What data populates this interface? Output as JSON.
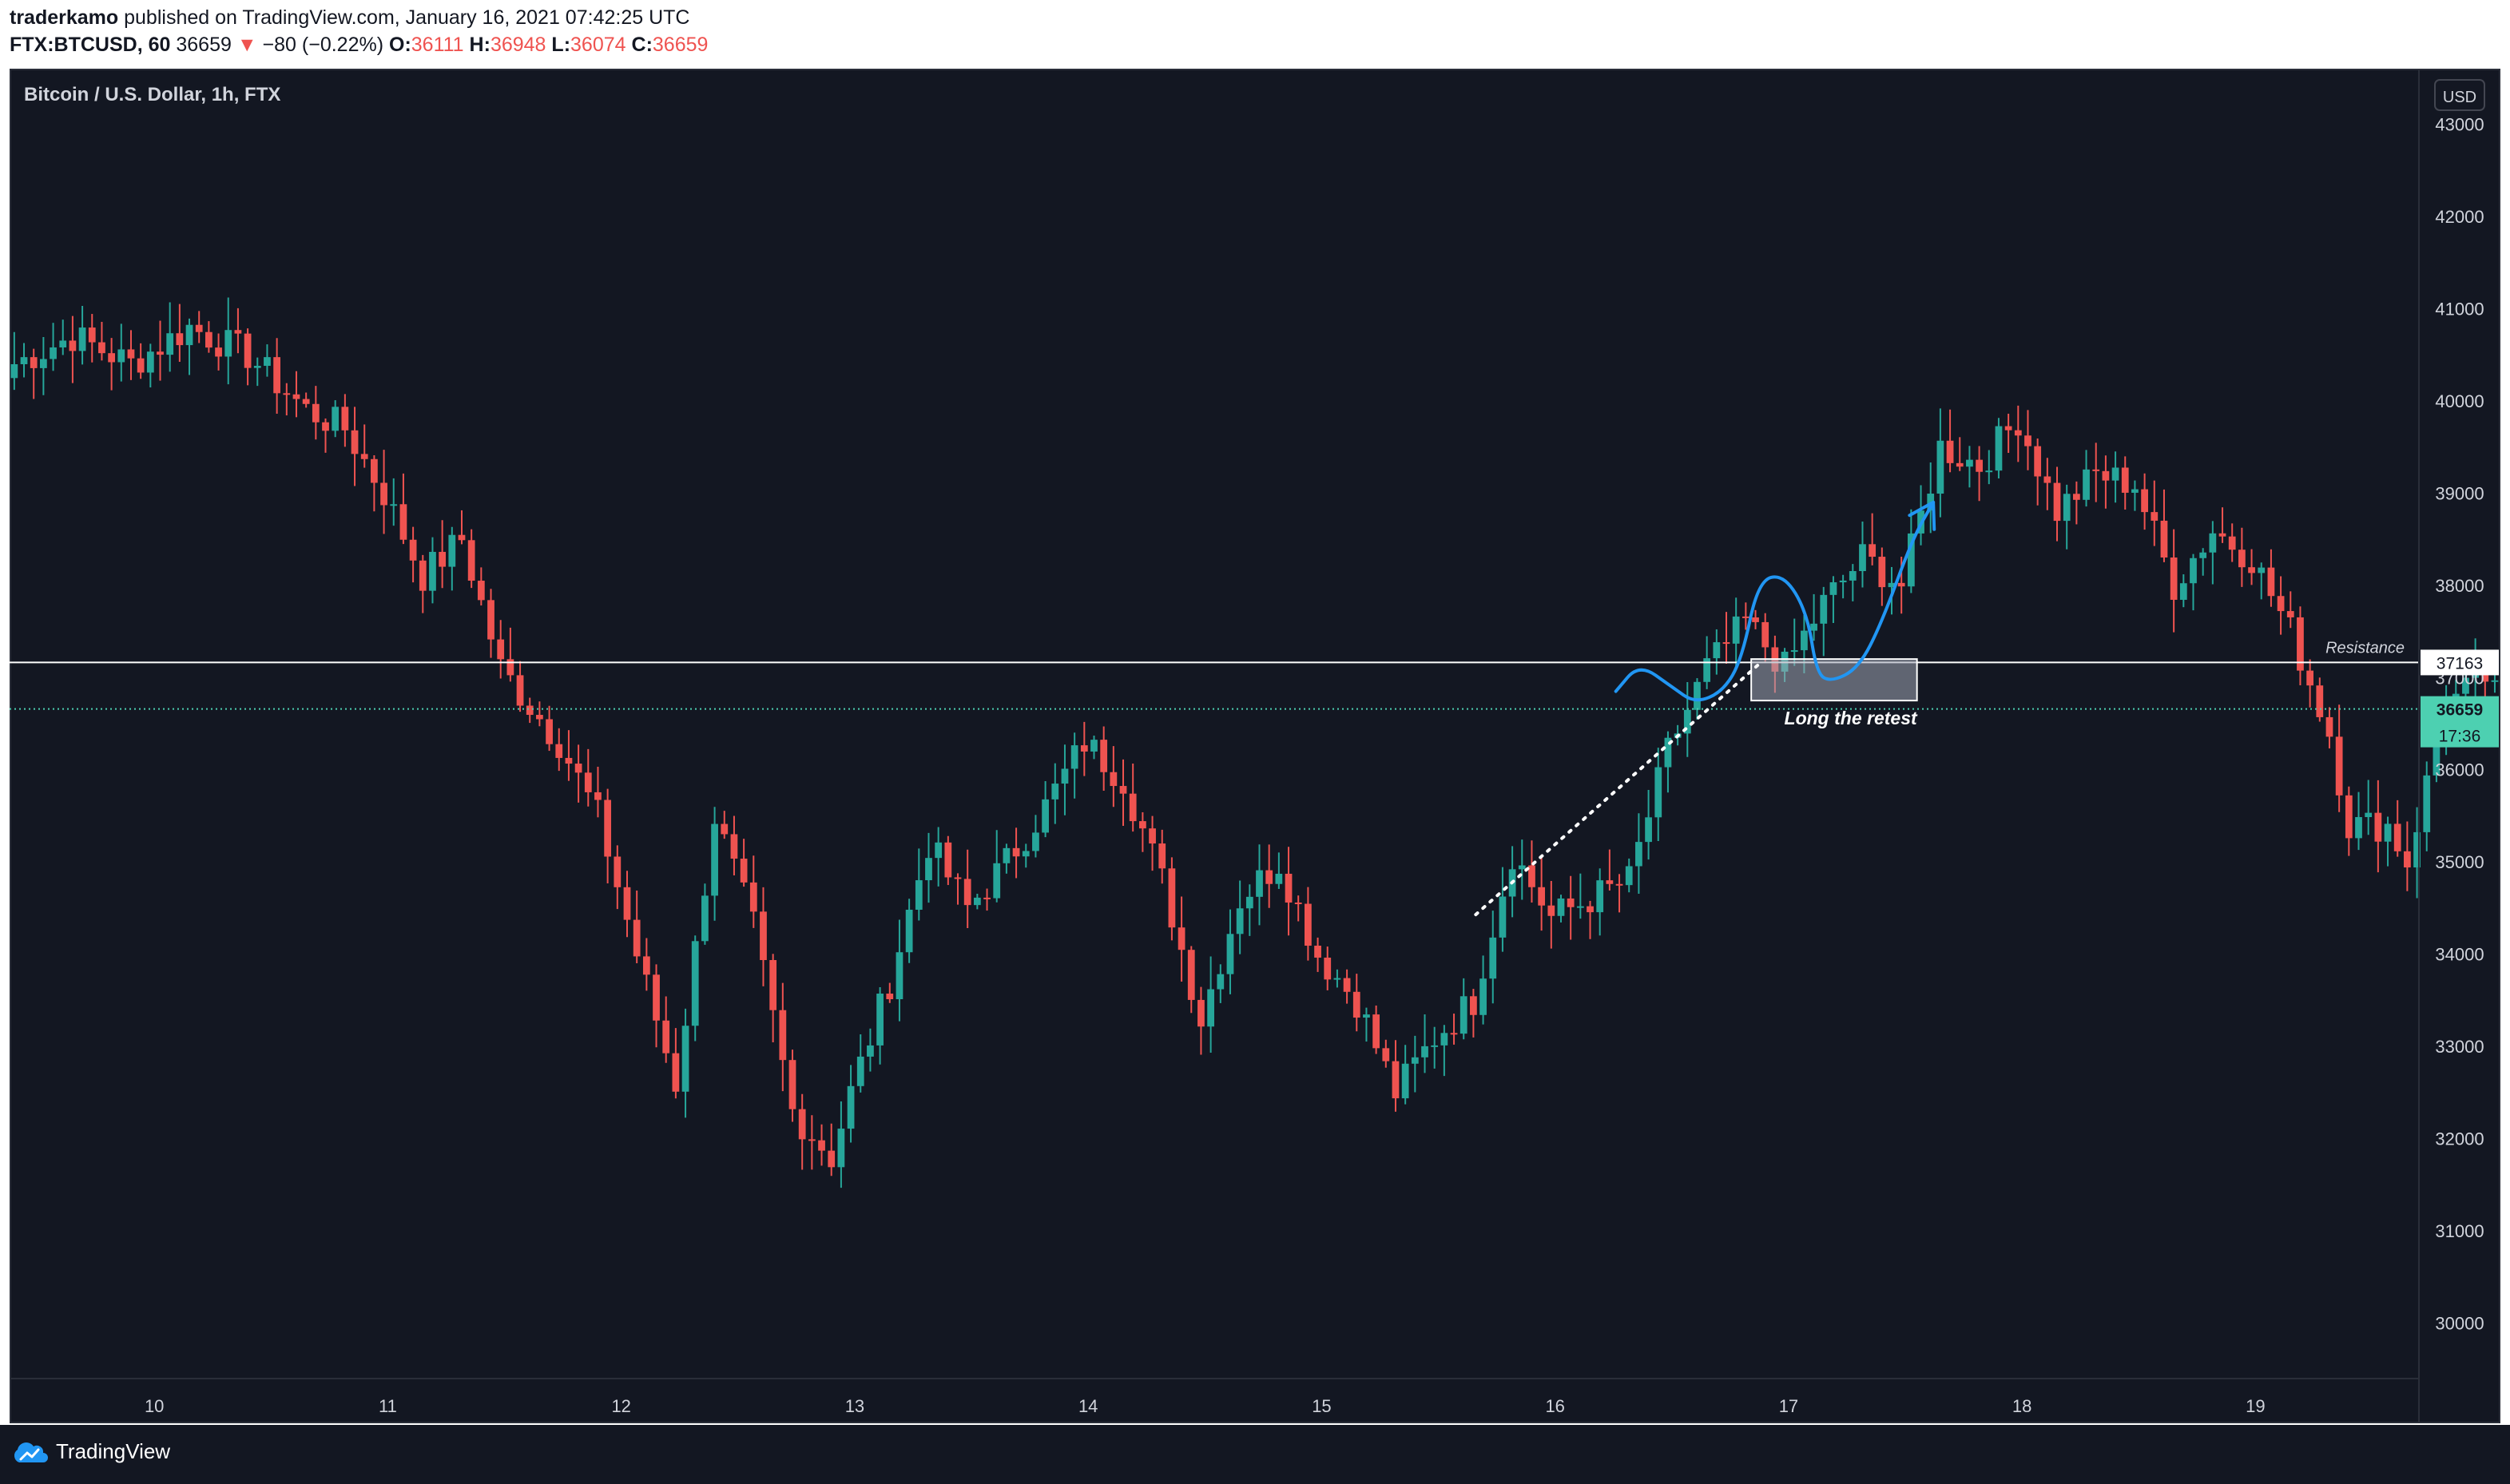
{
  "header": {
    "author": "traderkamo",
    "published_text": "published on TradingView.com, January 16, 2021 07:42:25 UTC",
    "symbol": "FTX:BTCUSD, 60",
    "last_price": "36659",
    "change_arrow": "▼",
    "change": "−80 (−0.22%)",
    "o_label": "O:",
    "o_value": "36111",
    "h_label": "H:",
    "h_value": "36948",
    "l_label": "L:",
    "l_value": "36074",
    "c_label": "C:",
    "c_value": "36659"
  },
  "footer": {
    "brand": "TradingView"
  },
  "colors": {
    "background": "#131722",
    "up": "#26a69a",
    "down": "#ef5350",
    "drawing": "#2196f3",
    "price_label": "#4dd0b1"
  },
  "chart_data": {
    "type": "candlestick",
    "title": "Bitcoin / U.S. Dollar, 1h, FTX",
    "currency": "USD",
    "ylim": [
      29400,
      43600
    ],
    "y_ticks": [
      30000,
      31000,
      32000,
      33000,
      34000,
      35000,
      36000,
      37000,
      38000,
      39000,
      40000,
      41000,
      42000,
      43000
    ],
    "x_ticks": [
      {
        "label": "10",
        "x": 10
      },
      {
        "label": "11",
        "x": 11
      },
      {
        "label": "12",
        "x": 12
      },
      {
        "label": "13",
        "x": 13
      },
      {
        "label": "14",
        "x": 14
      },
      {
        "label": "15",
        "x": 15
      },
      {
        "label": "16",
        "x": 16
      },
      {
        "label": "17",
        "x": 17
      },
      {
        "label": "18",
        "x": 18
      },
      {
        "label": "19",
        "x": 19
      }
    ],
    "xlim": [
      9.38,
      19.7
    ],
    "candles_start_day": 9.4,
    "candles_per_day": 24,
    "close_path": [
      [
        0,
        40400
      ],
      [
        6,
        40700
      ],
      [
        12,
        40400
      ],
      [
        18,
        40800
      ],
      [
        24,
        40500
      ],
      [
        30,
        39900
      ],
      [
        34,
        39700
      ],
      [
        38,
        39000
      ],
      [
        42,
        38100
      ],
      [
        46,
        38500
      ],
      [
        50,
        37100
      ],
      [
        56,
        36300
      ],
      [
        60,
        35500
      ],
      [
        64,
        34000
      ],
      [
        68,
        32600
      ],
      [
        72,
        35500
      ],
      [
        76,
        34300
      ],
      [
        80,
        32300
      ],
      [
        84,
        31800
      ],
      [
        86,
        32500
      ],
      [
        90,
        33700
      ],
      [
        94,
        35200
      ],
      [
        98,
        34500
      ],
      [
        102,
        35000
      ],
      [
        106,
        35600
      ],
      [
        110,
        36300
      ],
      [
        114,
        35900
      ],
      [
        118,
        34800
      ],
      [
        122,
        33300
      ],
      [
        126,
        34600
      ],
      [
        130,
        35000
      ],
      [
        134,
        34000
      ],
      [
        138,
        33500
      ],
      [
        142,
        32500
      ],
      [
        146,
        33100
      ],
      [
        150,
        33500
      ],
      [
        154,
        35100
      ],
      [
        158,
        34400
      ],
      [
        162,
        34600
      ],
      [
        166,
        34800
      ],
      [
        170,
        36200
      ],
      [
        174,
        37100
      ],
      [
        178,
        37600
      ],
      [
        182,
        37100
      ],
      [
        186,
        37800
      ],
      [
        190,
        38300
      ],
      [
        194,
        38000
      ],
      [
        198,
        39500
      ],
      [
        202,
        39300
      ],
      [
        206,
        39800
      ],
      [
        210,
        38800
      ],
      [
        214,
        39200
      ],
      [
        218,
        39100
      ],
      [
        222,
        38000
      ],
      [
        226,
        38600
      ],
      [
        230,
        38300
      ],
      [
        234,
        37500
      ],
      [
        238,
        36400
      ],
      [
        240,
        35400
      ],
      [
        244,
        35400
      ],
      [
        246,
        35000
      ],
      [
        250,
        36700
      ],
      [
        254,
        37000
      ],
      [
        258,
        36200
      ],
      [
        262,
        36700
      ]
    ],
    "last_price": 36659,
    "last_price_label": "36659",
    "countdown_label": "17:36",
    "annotations": {
      "resistance_level": 37163,
      "resistance_label": "Resistance",
      "resistance_price_label": "37163",
      "retest_box": {
        "x_from": 16.84,
        "x_to": 17.55,
        "y_from": 36750,
        "y_to": 37200,
        "label": "Long the retest"
      },
      "trendline": {
        "from": [
          15.66,
          34430
        ],
        "to": [
          16.88,
          37160
        ]
      },
      "projection_path": [
        [
          16.26,
          36850
        ],
        [
          16.36,
          37150
        ],
        [
          16.5,
          36900
        ],
        [
          16.6,
          36720
        ],
        [
          16.72,
          36850
        ],
        [
          16.8,
          37200
        ],
        [
          16.87,
          38050
        ],
        [
          16.98,
          38120
        ],
        [
          17.08,
          37700
        ],
        [
          17.12,
          37050
        ],
        [
          17.18,
          36950
        ],
        [
          17.3,
          37100
        ],
        [
          17.4,
          37600
        ],
        [
          17.53,
          38500
        ],
        [
          17.62,
          38900
        ]
      ]
    }
  }
}
